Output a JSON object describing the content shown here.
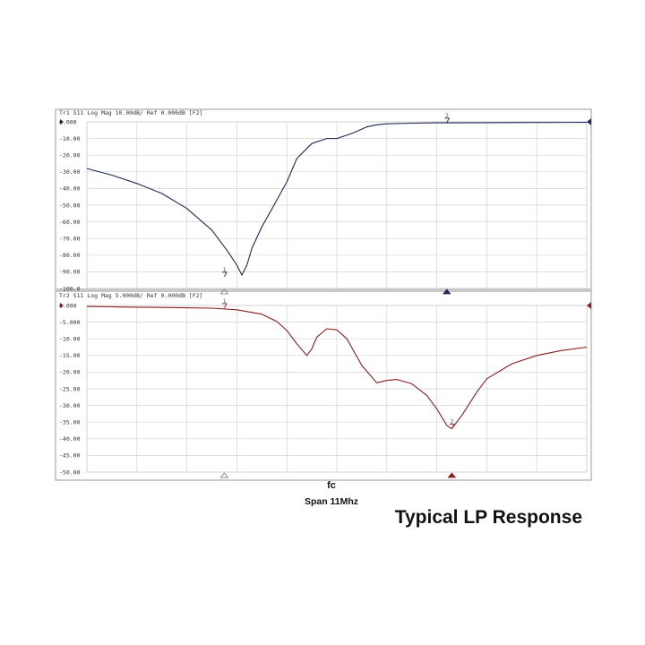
{
  "caption": "Typical LP Response",
  "chart_data": [
    {
      "type": "line",
      "panel": "top",
      "header": "Tr1 S11 Log Mag 10.00dB/ Ref 0.000dB [F2]",
      "ylim": [
        -100,
        0
      ],
      "yticks": [
        "0.000",
        "-10.00",
        "-20.00",
        "-30.00",
        "-40.00",
        "-50.00",
        "-60.00",
        "-70.00",
        "-80.00",
        "-90.00",
        "-100.0"
      ],
      "xlim": [
        0,
        10
      ],
      "x_grid_divisions": 10,
      "grid": true,
      "trace_color": "#1c2a55",
      "series": [
        {
          "x": [
            0,
            0.5,
            1,
            1.5,
            2,
            2.5,
            2.8,
            3.0,
            3.1,
            3.2,
            3.3,
            3.5,
            3.8,
            4.0,
            4.2,
            4.5,
            4.8,
            5.0,
            5.3,
            5.6,
            5.8,
            6.0,
            6.5,
            7,
            8,
            9,
            10
          ],
          "y": [
            -28,
            -32,
            -37,
            -43,
            -52,
            -65,
            -77,
            -86,
            -92,
            -86,
            -76,
            -63,
            -47,
            -36,
            -22,
            -13,
            -10,
            -10,
            -7,
            -3,
            -1.8,
            -1.2,
            -0.8,
            -0.6,
            -0.5,
            -0.4,
            -0.3
          ]
        }
      ],
      "markers": [
        {
          "label": "1",
          "x": 2.75,
          "y": -93,
          "color": "#1c2a55"
        },
        {
          "label": "2",
          "x": 7.2,
          "y": -0.5,
          "color": "#1c2a55"
        }
      ]
    },
    {
      "type": "line",
      "panel": "bottom",
      "header": "Tr2 S11 Log Mag 5.000dB/ Ref 0.000dB [F2]",
      "ylim": [
        -50,
        0
      ],
      "yticks": [
        "0.000",
        "-5.000",
        "-10.00",
        "-15.00",
        "-20.00",
        "-25.00",
        "-30.00",
        "-35.00",
        "-40.00",
        "-45.00",
        "-50.00"
      ],
      "xlim": [
        0,
        10
      ],
      "x_grid_divisions": 10,
      "grid": true,
      "trace_color": "#8a1d1d",
      "series": [
        {
          "x": [
            0,
            0.5,
            1,
            1.5,
            2,
            2.5,
            3.0,
            3.5,
            3.8,
            4.0,
            4.2,
            4.4,
            4.5,
            4.6,
            4.8,
            5.0,
            5.2,
            5.5,
            5.8,
            6.0,
            6.2,
            6.5,
            6.8,
            7.0,
            7.2,
            7.3,
            7.5,
            7.8,
            8.0,
            8.5,
            9,
            9.5,
            10
          ],
          "y": [
            -0.3,
            -0.4,
            -0.5,
            -0.6,
            -0.7,
            -0.8,
            -1.3,
            -2.6,
            -4.8,
            -7.5,
            -11.5,
            -15,
            -13,
            -9.5,
            -7,
            -7.3,
            -10,
            -18,
            -23.2,
            -22.5,
            -22.2,
            -23.5,
            -27,
            -31,
            -36,
            -37,
            -33,
            -26,
            -22,
            -17.5,
            -15,
            -13.5,
            -12.5
          ]
        }
      ],
      "markers": [
        {
          "label": "1",
          "x": 2.75,
          "y": -0.8,
          "color": "#8a1d1d"
        },
        {
          "label": "2",
          "x": 7.3,
          "y": -37,
          "color": "#8a1d1d"
        }
      ]
    }
  ],
  "x_center_label": "fc",
  "span_label": "Span 11Mhz"
}
